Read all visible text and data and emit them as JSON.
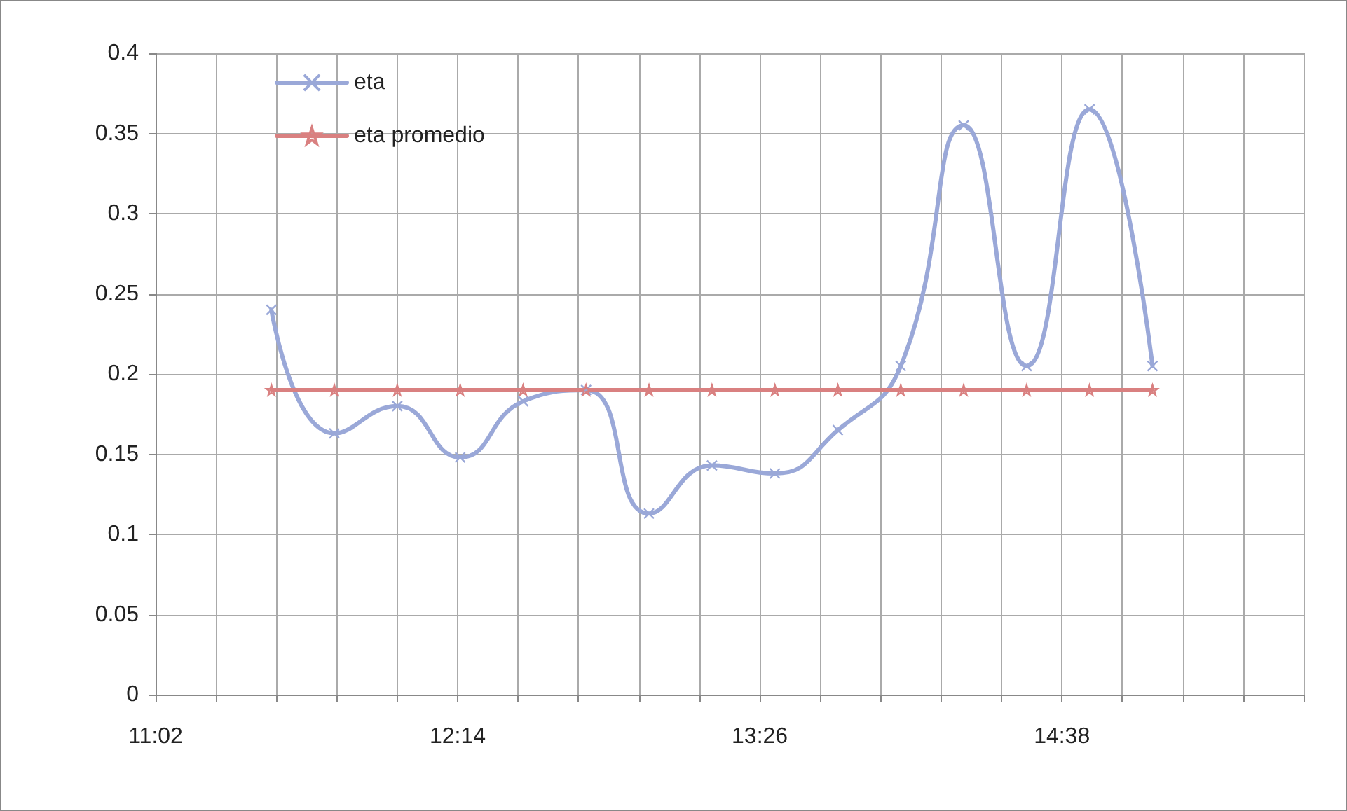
{
  "chart_data": {
    "type": "line",
    "x": [
      11.5,
      11.75,
      12.0,
      12.25,
      12.5,
      12.75,
      13.0,
      13.25,
      13.5,
      13.75,
      14.0,
      14.25,
      14.5,
      14.75,
      15.0
    ],
    "series": [
      {
        "name": "eta",
        "color": "#9aa8d8",
        "marker": "cross",
        "values": [
          0.24,
          0.163,
          0.18,
          0.148,
          0.183,
          0.19,
          0.113,
          0.143,
          0.138,
          0.165,
          0.205,
          0.355,
          0.205,
          0.365,
          0.205
        ]
      },
      {
        "name": "eta promedio",
        "color": "#d98080",
        "marker": "star",
        "values": [
          0.19,
          0.19,
          0.19,
          0.19,
          0.19,
          0.19,
          0.19,
          0.19,
          0.19,
          0.19,
          0.19,
          0.19,
          0.19,
          0.19,
          0.19
        ]
      }
    ],
    "xlim": [
      11.04,
      15.6
    ],
    "xticks": [
      {
        "value": 11.04,
        "label": "11:02"
      },
      {
        "value": 11.28,
        "label": null
      },
      {
        "value": 11.52,
        "label": null
      },
      {
        "value": 11.76,
        "label": null
      },
      {
        "value": 12.0,
        "label": null
      },
      {
        "value": 12.24,
        "label": "12:14"
      },
      {
        "value": 12.48,
        "label": null
      },
      {
        "value": 12.72,
        "label": null
      },
      {
        "value": 12.96,
        "label": null
      },
      {
        "value": 13.2,
        "label": null
      },
      {
        "value": 13.44,
        "label": "13:26"
      },
      {
        "value": 13.68,
        "label": null
      },
      {
        "value": 13.92,
        "label": null
      },
      {
        "value": 14.16,
        "label": null
      },
      {
        "value": 14.4,
        "label": null
      },
      {
        "value": 14.64,
        "label": "14:38"
      },
      {
        "value": 14.88,
        "label": null
      },
      {
        "value": 15.12,
        "label": null
      },
      {
        "value": 15.36,
        "label": null
      },
      {
        "value": 15.6,
        "label": null
      }
    ],
    "ylim": [
      0,
      0.4
    ],
    "yticks": [
      0,
      0.05,
      0.1,
      0.15,
      0.2,
      0.25,
      0.3,
      0.35,
      0.4
    ],
    "grid": true,
    "legend": "top left",
    "line_style": "solid"
  }
}
